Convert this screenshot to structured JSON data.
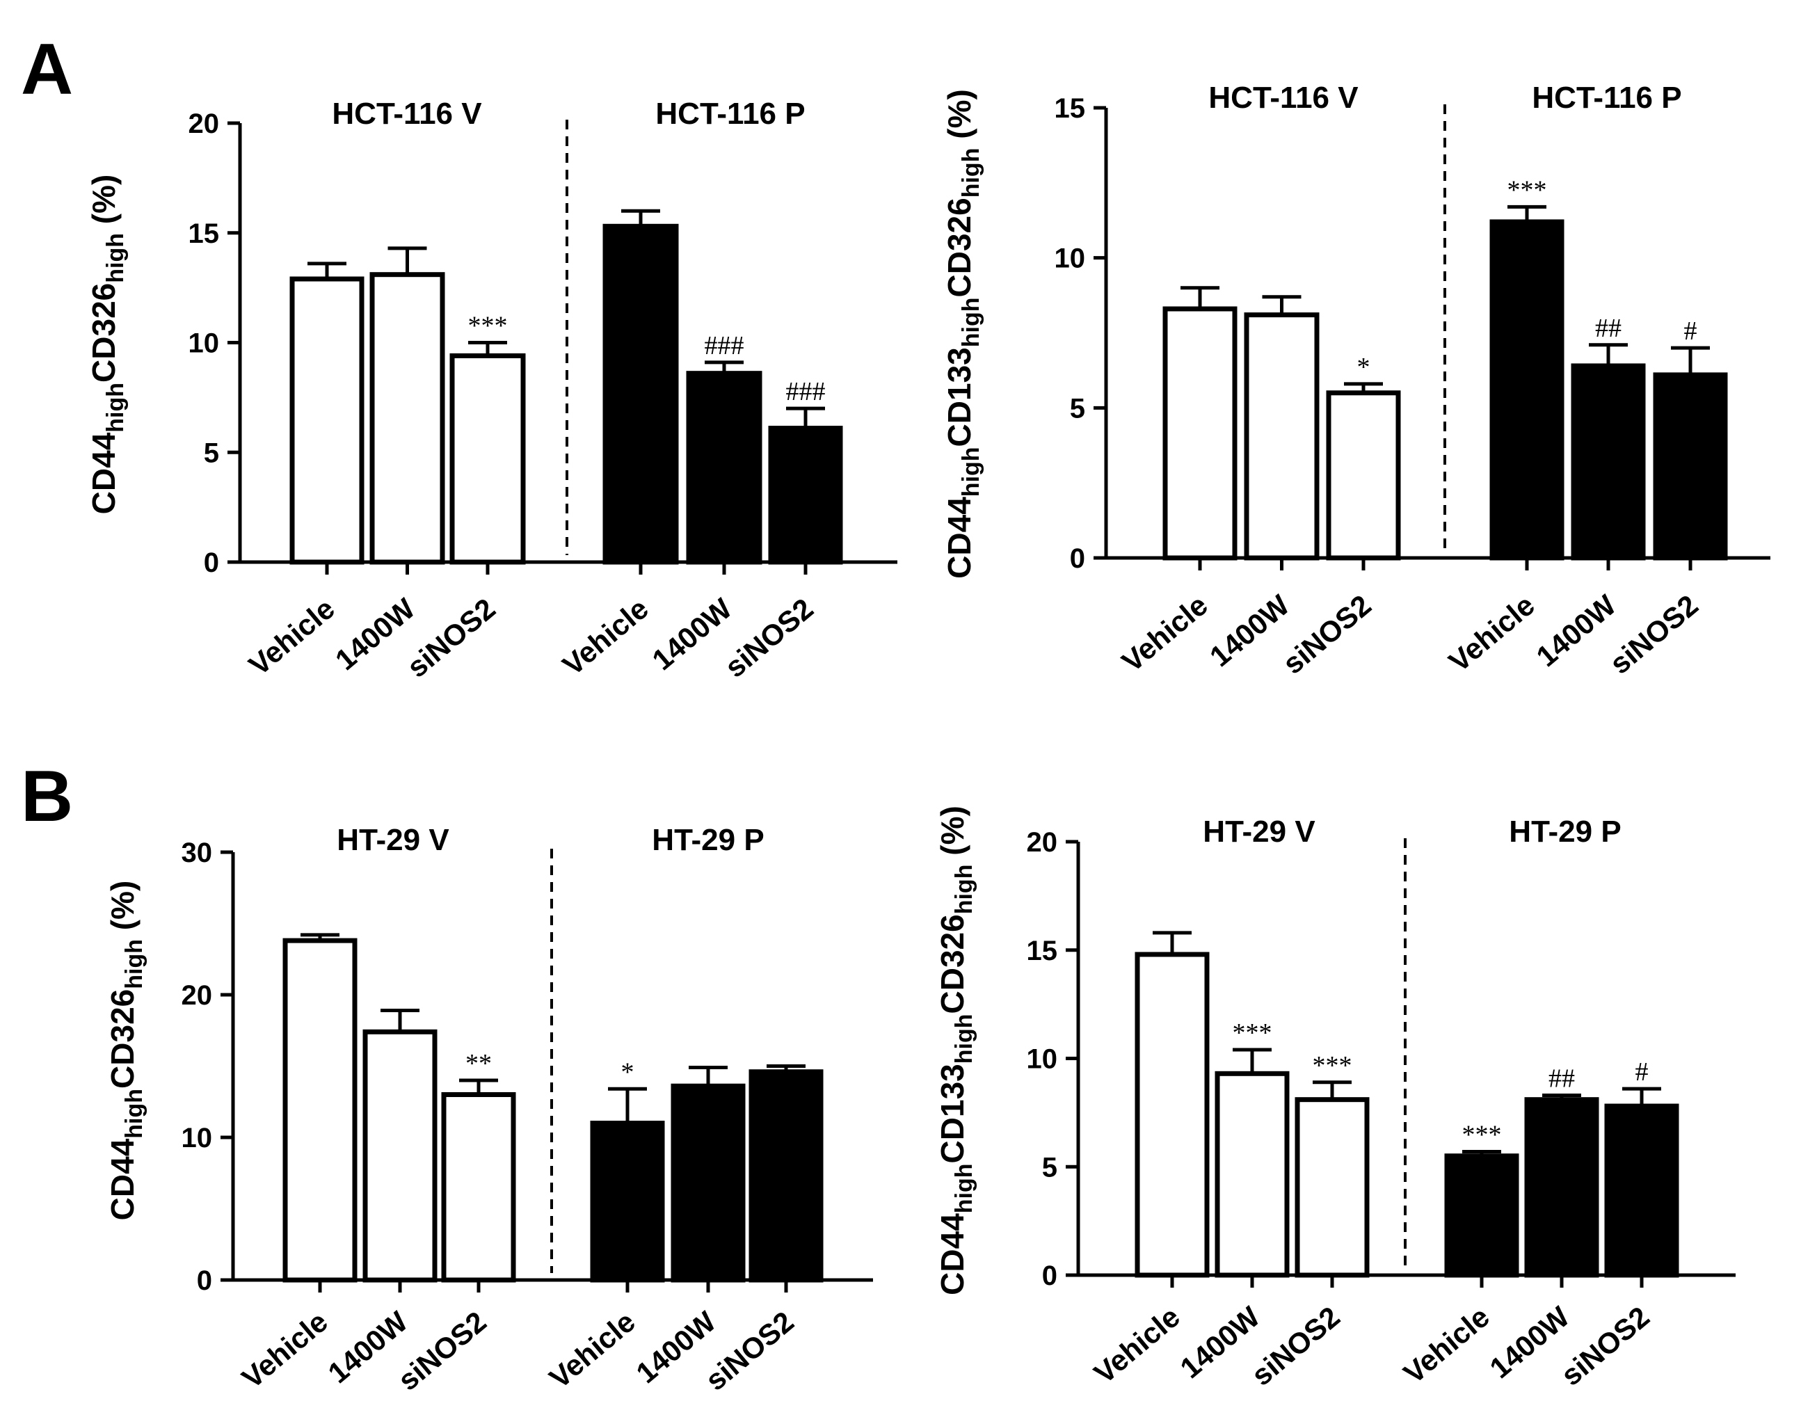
{
  "panels": {
    "A": {
      "letter": "A"
    },
    "B": {
      "letter": "B"
    }
  },
  "chart_data": [
    {
      "type": "bar",
      "panel": "A",
      "title": "",
      "xlabel": "",
      "ylabel": "CD44highCD326high (%)",
      "ylabel_parts": [
        {
          "text": "CD44",
          "sub": false
        },
        {
          "text": "high",
          "sub": true
        },
        {
          "text": "CD326",
          "sub": false
        },
        {
          "text": "high",
          "sub": true
        },
        {
          "text": " (%)",
          "sub": false
        }
      ],
      "ylim": [
        0,
        20
      ],
      "yticks": [
        0,
        5,
        10,
        15,
        20
      ],
      "groups": [
        {
          "title": "HCT-116 V",
          "fill": "#ffffff",
          "categories": [
            "Vehicle",
            "1400W",
            "siNOS2"
          ],
          "values": [
            12.9,
            13.1,
            9.4
          ],
          "errors": [
            0.7,
            1.2,
            0.6
          ],
          "annotations": [
            "",
            "",
            "***"
          ]
        },
        {
          "title": "HCT-116 P",
          "fill": "#000000",
          "categories": [
            "Vehicle",
            "1400W",
            "siNOS2"
          ],
          "values": [
            15.3,
            8.6,
            6.1
          ],
          "errors": [
            0.7,
            0.5,
            0.9
          ],
          "annotations": [
            "",
            "###",
            "###"
          ]
        }
      ]
    },
    {
      "type": "bar",
      "panel": "A",
      "title": "",
      "xlabel": "",
      "ylabel": "CD44highCD133highCD326high (%)",
      "ylabel_parts": [
        {
          "text": "CD44",
          "sub": false
        },
        {
          "text": "high",
          "sub": true
        },
        {
          "text": "CD133",
          "sub": false
        },
        {
          "text": "high",
          "sub": true
        },
        {
          "text": "CD326",
          "sub": false
        },
        {
          "text": "high",
          "sub": true
        },
        {
          "text": " (%)",
          "sub": false
        }
      ],
      "ylim": [
        0,
        15
      ],
      "yticks": [
        0,
        5,
        10,
        15
      ],
      "groups": [
        {
          "title": "HCT-116 V",
          "fill": "#ffffff",
          "categories": [
            "Vehicle",
            "1400W",
            "siNOS2"
          ],
          "values": [
            8.3,
            8.1,
            5.5
          ],
          "errors": [
            0.7,
            0.6,
            0.3
          ],
          "annotations": [
            "",
            "",
            "*"
          ]
        },
        {
          "title": "HCT-116 P",
          "fill": "#000000",
          "categories": [
            "Vehicle",
            "1400W",
            "siNOS2"
          ],
          "values": [
            11.2,
            6.4,
            6.1
          ],
          "errors": [
            0.5,
            0.7,
            0.9
          ],
          "annotations": [
            "***",
            "##",
            "#"
          ]
        }
      ]
    },
    {
      "type": "bar",
      "panel": "B",
      "title": "",
      "xlabel": "",
      "ylabel": "CD44highCD326high (%)",
      "ylabel_parts": [
        {
          "text": "CD44",
          "sub": false
        },
        {
          "text": "high",
          "sub": true
        },
        {
          "text": "CD326",
          "sub": false
        },
        {
          "text": "high",
          "sub": true
        },
        {
          "text": " (%)",
          "sub": false
        }
      ],
      "ylim": [
        0,
        30
      ],
      "yticks": [
        0,
        10,
        20,
        30
      ],
      "groups": [
        {
          "title": "HT-29 V",
          "fill": "#ffffff",
          "categories": [
            "Vehicle",
            "1400W",
            "siNOS2"
          ],
          "values": [
            23.8,
            17.4,
            13.0
          ],
          "errors": [
            0.4,
            1.5,
            1.0
          ],
          "annotations": [
            "",
            "",
            "**"
          ]
        },
        {
          "title": "HT-29 P",
          "fill": "#000000",
          "categories": [
            "Vehicle",
            "1400W",
            "siNOS2"
          ],
          "values": [
            11.0,
            13.6,
            14.6
          ],
          "errors": [
            2.4,
            1.3,
            0.4
          ],
          "annotations": [
            "*",
            "",
            ""
          ]
        }
      ]
    },
    {
      "type": "bar",
      "panel": "B",
      "title": "",
      "xlabel": "",
      "ylabel": "CD44highCD133highCD326high (%)",
      "ylabel_parts": [
        {
          "text": "CD44",
          "sub": false
        },
        {
          "text": "high",
          "sub": true
        },
        {
          "text": "CD133",
          "sub": false
        },
        {
          "text": "high",
          "sub": true
        },
        {
          "text": "CD326",
          "sub": false
        },
        {
          "text": "high",
          "sub": true
        },
        {
          "text": " (%)",
          "sub": false
        }
      ],
      "ylim": [
        0,
        20
      ],
      "yticks": [
        0,
        5,
        10,
        15,
        20
      ],
      "groups": [
        {
          "title": "HT-29 V",
          "fill": "#ffffff",
          "categories": [
            "Vehicle",
            "1400W",
            "siNOS2"
          ],
          "values": [
            14.8,
            9.3,
            8.1
          ],
          "errors": [
            1.0,
            1.1,
            0.8
          ],
          "annotations": [
            "",
            "***",
            "***"
          ]
        },
        {
          "title": "HT-29 P",
          "fill": "#000000",
          "categories": [
            "Vehicle",
            "1400W",
            "siNOS2"
          ],
          "values": [
            5.5,
            8.1,
            7.8
          ],
          "errors": [
            0.2,
            0.2,
            0.8
          ],
          "annotations": [
            "***",
            "##",
            "#"
          ]
        }
      ]
    }
  ]
}
